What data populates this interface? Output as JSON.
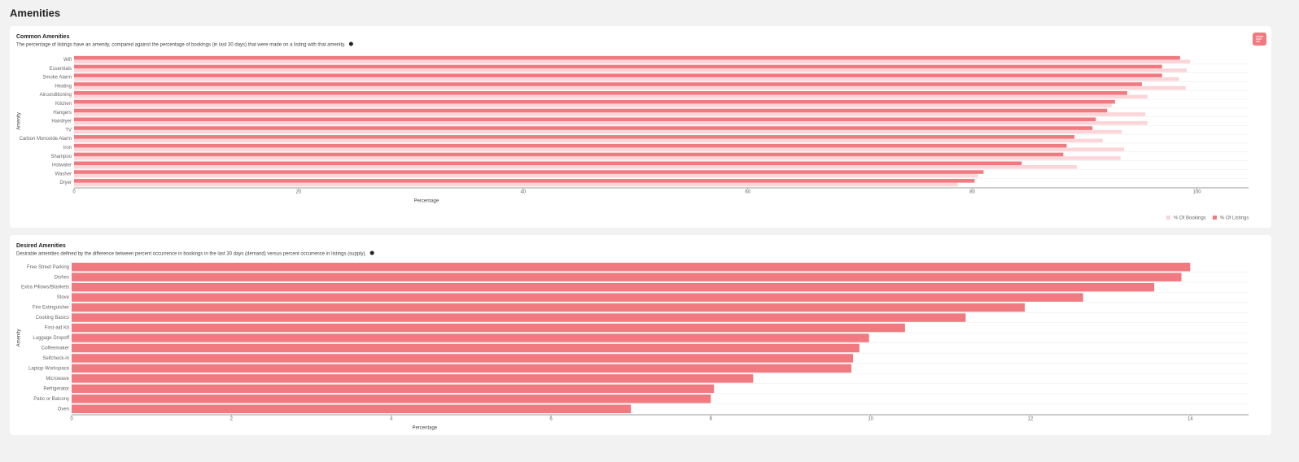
{
  "page_title": "Amenities",
  "chart_data": [
    {
      "type": "hbar",
      "title": "Common Amenities",
      "subtitle": "The percentage of listings have an amenity, compared against the percentage of bookings (in last 30 days) that were made on a listing with that amenity.",
      "x_label": "Percentage",
      "y_label": "Amenity",
      "categories": [
        "Wifi",
        "Essentials",
        "Smoke Alarm",
        "Heating",
        "Airconditioning",
        "Kitchen",
        "Hangers",
        "Hairdryer",
        "TV",
        "Carbon Monoxide Alarm",
        "Iron",
        "Shampoo",
        "Hotwater",
        "Washer",
        "Dryer"
      ],
      "series": [
        {
          "name": "% Of Bookings",
          "color": "#fbd5d8",
          "values": [
            99.4,
            99.1,
            98.4,
            99.0,
            95.6,
            92.4,
            95.4,
            95.6,
            93.3,
            91.6,
            93.5,
            93.2,
            89.3,
            80.5,
            78.7
          ]
        },
        {
          "name": "% Of Listings",
          "color": "#f07a80",
          "values": [
            98.5,
            96.9,
            96.9,
            95.1,
            93.8,
            92.7,
            92.0,
            91.0,
            90.7,
            89.1,
            88.4,
            88.1,
            84.4,
            81.0,
            80.2
          ]
        }
      ],
      "xlim": [
        0,
        104.6
      ],
      "xticks": [
        0,
        20,
        40,
        60,
        80,
        100
      ],
      "legend": "bottom-right"
    },
    {
      "type": "hbar",
      "title": "Desired Amenities",
      "subtitle": "Desirable amenities defined by the difference between percent occurrence in bookings in the last 30 days (demand) versus percent occurrence in listings (supply).",
      "x_label": "Percentage",
      "y_label": "Amenity",
      "categories": [
        "Free Street Parking",
        "Dishes",
        "Extra Pillows/Blankets",
        "Stove",
        "Fire Extinguisher",
        "Cooking Basics",
        "First-aid Kit",
        "Luggage Dropoff",
        "Coffeemaker",
        "Selfcheck-in",
        "Laptop Workspace",
        "Microwave",
        "Refrigerator",
        "Patio or Balcony",
        "Oven"
      ],
      "series": [
        {
          "name": "Percentage",
          "color": "#f07a80",
          "values": [
            14.0,
            13.89,
            13.55,
            12.66,
            11.93,
            11.19,
            10.43,
            9.98,
            9.86,
            9.78,
            9.76,
            8.53,
            8.04,
            8.0,
            7.0
          ]
        }
      ],
      "xlim": [
        0,
        14.73
      ],
      "xticks": [
        0,
        2,
        4,
        6,
        8,
        10,
        12,
        14
      ]
    }
  ]
}
